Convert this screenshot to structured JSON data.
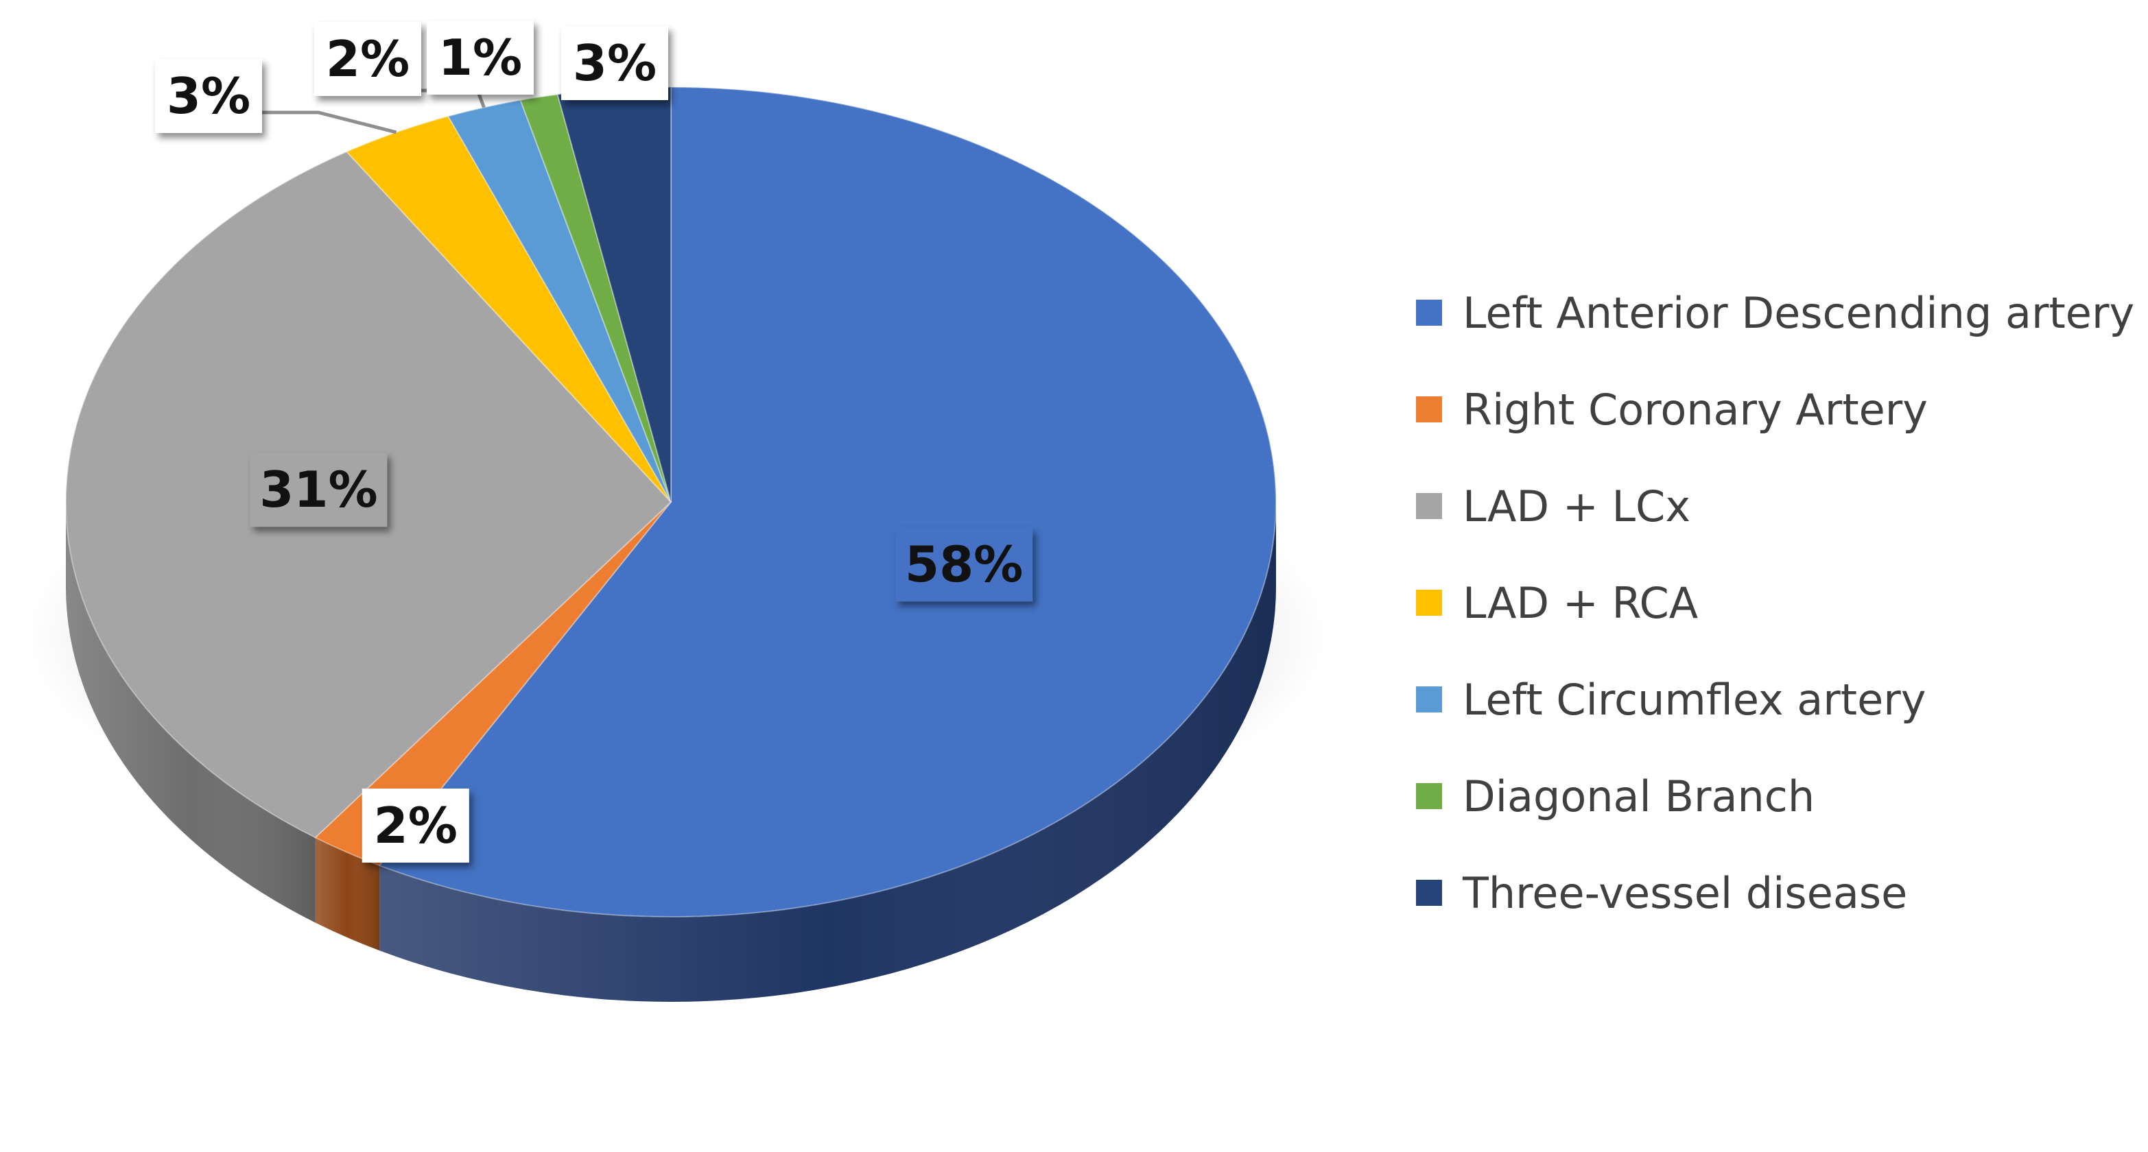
{
  "chart_data": {
    "type": "pie",
    "style": "3d",
    "title": "",
    "slices": [
      {
        "label": "Left Anterior Descending artery",
        "value": 58,
        "display": "58%",
        "color": "#4472C4",
        "side_color": "#1F3564"
      },
      {
        "label": "Right Coronary Artery",
        "value": 2,
        "display": "2%",
        "color": "#ED7D31",
        "side_color": "#8E4516"
      },
      {
        "label": "LAD + LCx",
        "value": 31,
        "display": "31%",
        "color": "#A5A5A5",
        "side_color": "#6E6E6E"
      },
      {
        "label": "LAD + RCA",
        "value": 3,
        "display": "3%",
        "color": "#FFC000",
        "side_color": "#9A7400"
      },
      {
        "label": "Left Circumflex artery",
        "value": 2,
        "display": "2%",
        "color": "#5B9BD5",
        "side_color": "#2E5F8A"
      },
      {
        "label": "Diagonal Branch",
        "value": 1,
        "display": "1%",
        "color": "#70AD47",
        "side_color": "#3F6A24"
      },
      {
        "label": "Three-vessel disease",
        "value": 3,
        "display": "3%",
        "color": "#264478",
        "side_color": "#142544"
      }
    ],
    "legend_position": "right"
  }
}
